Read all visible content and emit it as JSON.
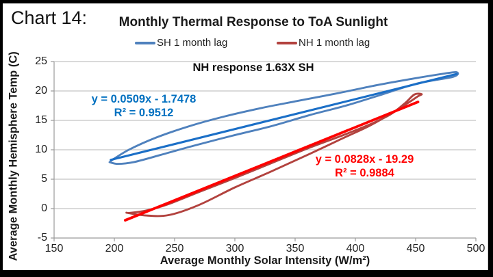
{
  "page": {
    "chart_label": "Chart 14:"
  },
  "chart_data": {
    "type": "line",
    "title": "Monthly Thermal Response to ToA Sunlight",
    "annotation": "NH response 1.63X SH",
    "xlabel": "Average Monthly Solar Intensity (W/m²)",
    "ylabel": "Average Monthly Hemisphere Temp (C)",
    "xlim": [
      150,
      500
    ],
    "ylim": [
      -5,
      25
    ],
    "xticks": [
      150,
      200,
      250,
      300,
      350,
      400,
      450,
      500
    ],
    "yticks": [
      -5,
      0,
      5,
      10,
      15,
      20,
      25
    ],
    "grid": "horizontal-only",
    "grid_color": "#c3c3c3",
    "axis_color": "#9a9a9a",
    "legend_position": "top-center",
    "series": [
      {
        "name": "SH 1 month lag",
        "color": "#4F81BD",
        "shape": "smoothed hysteresis loop of monthly values",
        "points": [
          [
            197,
            8.1
          ],
          [
            212,
            10.0
          ],
          [
            235,
            12.1
          ],
          [
            262,
            14.0
          ],
          [
            292,
            15.7
          ],
          [
            322,
            17.1
          ],
          [
            352,
            18.3
          ],
          [
            385,
            19.6
          ],
          [
            418,
            21.0
          ],
          [
            448,
            22.1
          ],
          [
            472,
            22.9
          ],
          [
            484,
            23.2
          ],
          [
            481,
            22.4
          ],
          [
            452,
            21.3
          ],
          [
            422,
            19.4
          ],
          [
            392,
            17.5
          ],
          [
            362,
            15.9
          ],
          [
            330,
            14.0
          ],
          [
            298,
            12.4
          ],
          [
            266,
            10.7
          ],
          [
            238,
            9.1
          ],
          [
            216,
            7.9
          ],
          [
            203,
            7.6
          ],
          [
            196,
            7.9
          ]
        ]
      },
      {
        "name": "NH 1 month lag",
        "color": "#B2423E",
        "shape": "smoothed hysteresis loop of monthly values",
        "points": [
          [
            210,
            -0.7
          ],
          [
            225,
            -1.15
          ],
          [
            245,
            -1.1
          ],
          [
            270,
            0.6
          ],
          [
            300,
            3.6
          ],
          [
            330,
            6.3
          ],
          [
            360,
            9.1
          ],
          [
            390,
            12.0
          ],
          [
            412,
            14.1
          ],
          [
            430,
            16.2
          ],
          [
            444,
            18.0
          ],
          [
            452,
            19.1
          ],
          [
            455,
            19.45
          ],
          [
            449,
            19.4
          ],
          [
            441,
            17.9
          ],
          [
            429,
            16.0
          ],
          [
            413,
            14.4
          ],
          [
            390,
            12.5
          ],
          [
            360,
            10.2
          ],
          [
            330,
            7.7
          ],
          [
            300,
            5.2
          ],
          [
            270,
            2.8
          ],
          [
            244,
            0.7
          ],
          [
            226,
            -0.35
          ],
          [
            212,
            -0.75
          ]
        ]
      }
    ],
    "trendlines": [
      {
        "series": "SH 1 month lag",
        "equation": "y = 0.0509x - 1.7478",
        "r2_label": "R² = 0.9512",
        "slope": 0.0509,
        "intercept": -1.7478,
        "x_range": [
          197,
          484
        ],
        "color": "#1B6FC7",
        "label_color": "#0070C0"
      },
      {
        "series": "NH 1 month lag",
        "equation": "y = 0.0828x - 19.29",
        "r2_label": "R² = 0.9884",
        "slope": 0.0828,
        "intercept": -19.29,
        "x_range": [
          209,
          452
        ],
        "color": "#FF0000",
        "label_color": "#FF0000"
      }
    ]
  }
}
